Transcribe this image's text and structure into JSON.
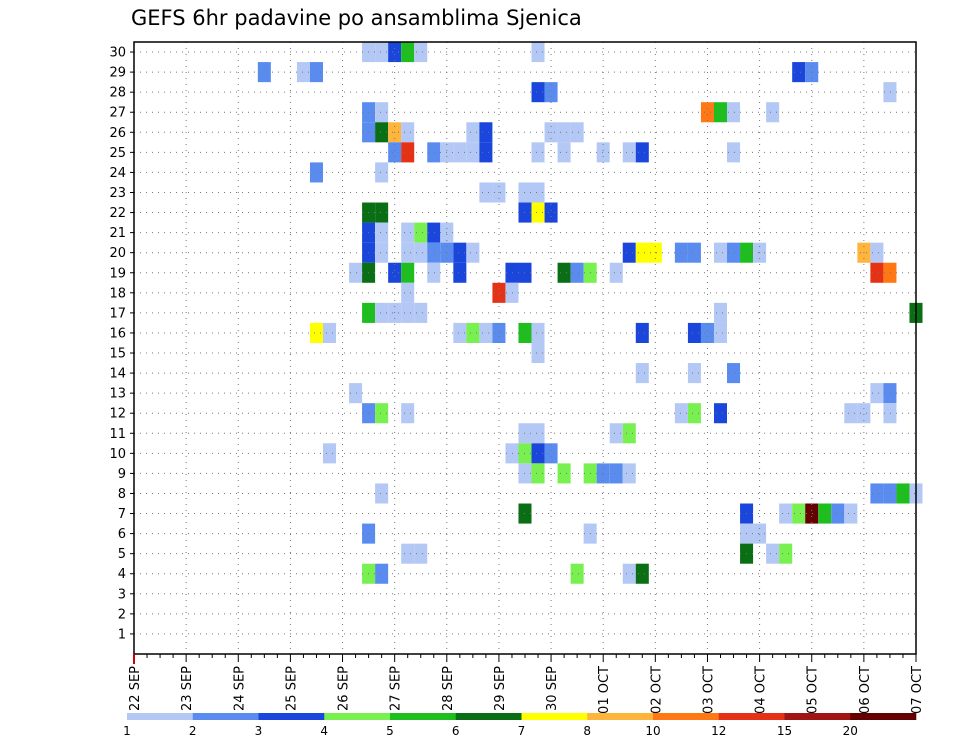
{
  "chart_data": {
    "type": "heatmap",
    "title": "GEFS 6hr padavine po ansamblima Sjenica",
    "y_categories": [
      "1",
      "2",
      "3",
      "4",
      "5",
      "6",
      "7",
      "8",
      "9",
      "10",
      "11",
      "12",
      "13",
      "14",
      "15",
      "16",
      "17",
      "18",
      "19",
      "20",
      "21",
      "22",
      "23",
      "24",
      "25",
      "26",
      "27",
      "28",
      "29",
      "30"
    ],
    "x_tick_labels": [
      "22 SEP",
      "23 SEP",
      "24 SEP",
      "25 SEP",
      "26 SEP",
      "27 SEP",
      "28 SEP",
      "29 SEP",
      "30 SEP",
      "01 OCT",
      "02 OCT",
      "03 OCT",
      "04 OCT",
      "05 OCT",
      "06 OCT",
      "07 OCT"
    ],
    "x_steps_per_day": 4,
    "x_step_count": 61,
    "colorbar": {
      "colors": [
        "#b4c8f5",
        "#5a8cf0",
        "#1a46dc",
        "#78f050",
        "#1ebe1e",
        "#0a6e14",
        "#ffff00",
        "#ffb43c",
        "#ff7814",
        "#e63214",
        "#a01414",
        "#640000"
      ],
      "labels": [
        "1",
        "2",
        "3",
        "4",
        "5",
        "6",
        "7",
        "8",
        "10",
        "12",
        "15",
        "20"
      ]
    },
    "cells": [
      {
        "m": 30,
        "s": [
          [
            18,
            0
          ],
          [
            19,
            0
          ],
          [
            20,
            2
          ],
          [
            21,
            4
          ],
          [
            22,
            0
          ],
          [
            31,
            0
          ]
        ]
      },
      {
        "m": 29,
        "s": [
          [
            10,
            1
          ],
          [
            13,
            0
          ],
          [
            14,
            1
          ],
          [
            51,
            2
          ],
          [
            52,
            1
          ]
        ]
      },
      {
        "m": 28,
        "s": [
          [
            31,
            2
          ],
          [
            32,
            1
          ],
          [
            58,
            0
          ]
        ]
      },
      {
        "m": 27,
        "s": [
          [
            18,
            1
          ],
          [
            19,
            0
          ],
          [
            44,
            8
          ],
          [
            45,
            4
          ],
          [
            46,
            0
          ],
          [
            49,
            0
          ]
        ]
      },
      {
        "m": 26,
        "s": [
          [
            18,
            1
          ],
          [
            19,
            5
          ],
          [
            20,
            7
          ],
          [
            21,
            0
          ],
          [
            26,
            0
          ],
          [
            27,
            2
          ],
          [
            32,
            0
          ],
          [
            33,
            0
          ],
          [
            34,
            0
          ]
        ]
      },
      {
        "m": 25,
        "s": [
          [
            20,
            1
          ],
          [
            21,
            9
          ],
          [
            23,
            1
          ],
          [
            24,
            0
          ],
          [
            25,
            0
          ],
          [
            26,
            0
          ],
          [
            27,
            2
          ],
          [
            31,
            0
          ],
          [
            33,
            0
          ],
          [
            36,
            0
          ],
          [
            38,
            0
          ],
          [
            39,
            2
          ],
          [
            46,
            0
          ]
        ]
      },
      {
        "m": 24,
        "s": [
          [
            14,
            1
          ],
          [
            19,
            0
          ]
        ]
      },
      {
        "m": 23,
        "s": [
          [
            27,
            0
          ],
          [
            28,
            0
          ],
          [
            30,
            0
          ],
          [
            31,
            0
          ]
        ]
      },
      {
        "m": 22,
        "s": [
          [
            18,
            5
          ],
          [
            19,
            5
          ],
          [
            30,
            2
          ],
          [
            31,
            6
          ],
          [
            32,
            2
          ]
        ]
      },
      {
        "m": 21,
        "s": [
          [
            18,
            2
          ],
          [
            19,
            0
          ],
          [
            21,
            0
          ],
          [
            22,
            3
          ],
          [
            23,
            2
          ],
          [
            24,
            0
          ]
        ]
      },
      {
        "m": 20,
        "s": [
          [
            18,
            2
          ],
          [
            19,
            0
          ],
          [
            21,
            0
          ],
          [
            22,
            0
          ],
          [
            23,
            1
          ],
          [
            24,
            1
          ],
          [
            25,
            2
          ],
          [
            26,
            0
          ],
          [
            38,
            2
          ],
          [
            39,
            6
          ],
          [
            40,
            6
          ],
          [
            42,
            1
          ],
          [
            43,
            1
          ],
          [
            45,
            0
          ],
          [
            46,
            1
          ],
          [
            47,
            4
          ],
          [
            48,
            0
          ],
          [
            56,
            7
          ],
          [
            57,
            0
          ]
        ]
      },
      {
        "m": 19,
        "s": [
          [
            17,
            0
          ],
          [
            18,
            5
          ],
          [
            20,
            2
          ],
          [
            21,
            4
          ],
          [
            23,
            0
          ],
          [
            25,
            2
          ],
          [
            29,
            2
          ],
          [
            30,
            2
          ],
          [
            33,
            5
          ],
          [
            34,
            1
          ],
          [
            35,
            3
          ],
          [
            37,
            0
          ],
          [
            57,
            9
          ],
          [
            58,
            8
          ]
        ]
      },
      {
        "m": 18,
        "s": [
          [
            21,
            0
          ],
          [
            28,
            9
          ],
          [
            29,
            0
          ]
        ]
      },
      {
        "m": 17,
        "s": [
          [
            18,
            4
          ],
          [
            19,
            0
          ],
          [
            20,
            0
          ],
          [
            21,
            0
          ],
          [
            22,
            0
          ],
          [
            45,
            0
          ],
          [
            60,
            5
          ]
        ]
      },
      {
        "m": 16,
        "s": [
          [
            14,
            6
          ],
          [
            15,
            0
          ],
          [
            25,
            0
          ],
          [
            26,
            3
          ],
          [
            27,
            0
          ],
          [
            28,
            1
          ],
          [
            30,
            4
          ],
          [
            31,
            0
          ],
          [
            39,
            2
          ],
          [
            43,
            2
          ],
          [
            44,
            1
          ],
          [
            45,
            0
          ]
        ]
      },
      {
        "m": 15,
        "s": [
          [
            31,
            0
          ]
        ]
      },
      {
        "m": 14,
        "s": [
          [
            39,
            0
          ],
          [
            43,
            0
          ],
          [
            46,
            1
          ]
        ]
      },
      {
        "m": 13,
        "s": [
          [
            17,
            0
          ],
          [
            57,
            0
          ],
          [
            58,
            1
          ]
        ]
      },
      {
        "m": 12,
        "s": [
          [
            18,
            1
          ],
          [
            19,
            3
          ],
          [
            21,
            0
          ],
          [
            42,
            0
          ],
          [
            43,
            3
          ],
          [
            45,
            2
          ],
          [
            55,
            0
          ],
          [
            56,
            0
          ],
          [
            58,
            0
          ]
        ]
      },
      {
        "m": 11,
        "s": [
          [
            30,
            0
          ],
          [
            31,
            0
          ],
          [
            37,
            0
          ],
          [
            38,
            3
          ]
        ]
      },
      {
        "m": 10,
        "s": [
          [
            15,
            0
          ],
          [
            29,
            0
          ],
          [
            30,
            3
          ],
          [
            31,
            2
          ],
          [
            32,
            1
          ]
        ]
      },
      {
        "m": 9,
        "s": [
          [
            30,
            0
          ],
          [
            31,
            3
          ],
          [
            33,
            3
          ],
          [
            35,
            3
          ],
          [
            36,
            1
          ],
          [
            37,
            1
          ],
          [
            38,
            0
          ]
        ]
      },
      {
        "m": 8,
        "s": [
          [
            19,
            0
          ],
          [
            57,
            1
          ],
          [
            58,
            1
          ],
          [
            59,
            4
          ],
          [
            60,
            0
          ]
        ]
      },
      {
        "m": 7,
        "s": [
          [
            30,
            5
          ],
          [
            47,
            2
          ],
          [
            50,
            0
          ],
          [
            51,
            3
          ],
          [
            52,
            11
          ],
          [
            53,
            4
          ],
          [
            54,
            1
          ],
          [
            55,
            0
          ]
        ]
      },
      {
        "m": 6,
        "s": [
          [
            18,
            1
          ],
          [
            35,
            0
          ],
          [
            47,
            0
          ],
          [
            48,
            0
          ]
        ]
      },
      {
        "m": 5,
        "s": [
          [
            21,
            0
          ],
          [
            22,
            0
          ],
          [
            47,
            5
          ],
          [
            49,
            0
          ],
          [
            50,
            3
          ]
        ]
      },
      {
        "m": 4,
        "s": [
          [
            18,
            3
          ],
          [
            19,
            1
          ],
          [
            34,
            3
          ],
          [
            38,
            0
          ],
          [
            39,
            5
          ]
        ]
      }
    ]
  }
}
